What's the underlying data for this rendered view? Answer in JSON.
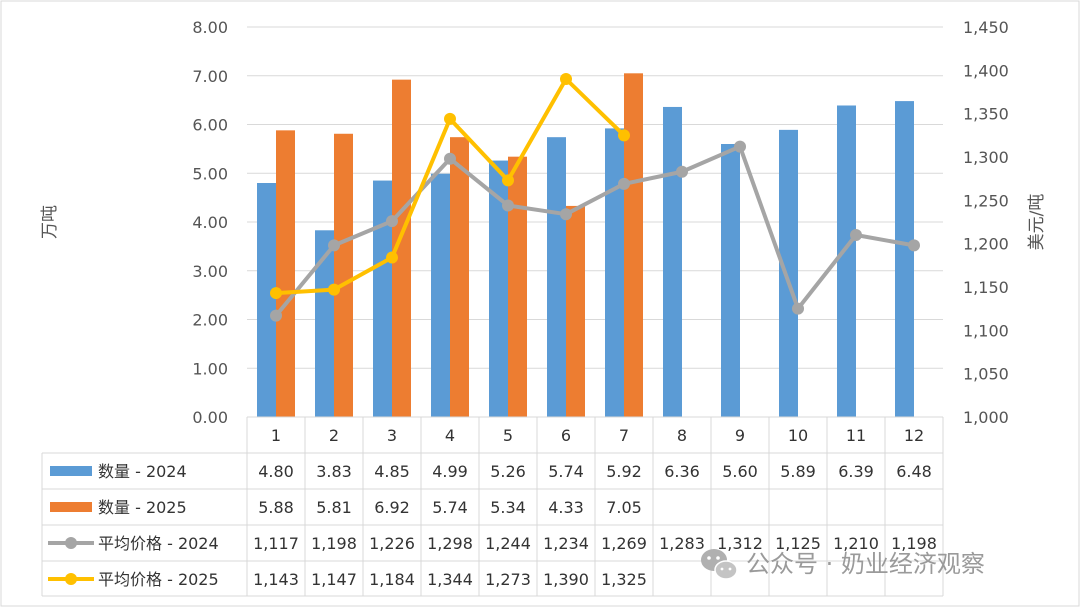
{
  "chart_data": {
    "type": "bar+line",
    "categories": [
      "1",
      "2",
      "3",
      "4",
      "5",
      "6",
      "7",
      "8",
      "9",
      "10",
      "11",
      "12"
    ],
    "y_left": {
      "label": "万吨",
      "ylim": [
        0,
        8
      ],
      "ticks": [
        "0.00",
        "1.00",
        "2.00",
        "3.00",
        "4.00",
        "5.00",
        "6.00",
        "7.00",
        "8.00"
      ]
    },
    "y_right": {
      "label": "美元/吨",
      "ylim": [
        1000,
        1450
      ],
      "ticks": [
        "1,000",
        "1,050",
        "1,100",
        "1,150",
        "1,200",
        "1,250",
        "1,300",
        "1,350",
        "1,400",
        "1,450"
      ]
    },
    "series": [
      {
        "name": "数量 - 2024",
        "type": "bar",
        "axis": "left",
        "color": "#5b9bd5",
        "values": [
          4.8,
          3.83,
          4.85,
          4.99,
          5.26,
          5.74,
          5.92,
          6.36,
          5.6,
          5.89,
          6.39,
          6.48
        ],
        "labels": [
          "4.80",
          "3.83",
          "4.85",
          "4.99",
          "5.26",
          "5.74",
          "5.92",
          "6.36",
          "5.60",
          "5.89",
          "6.39",
          "6.48"
        ]
      },
      {
        "name": "数量 - 2025",
        "type": "bar",
        "axis": "left",
        "color": "#ed7d31",
        "values": [
          5.88,
          5.81,
          6.92,
          5.74,
          5.34,
          4.33,
          7.05,
          null,
          null,
          null,
          null,
          null
        ],
        "labels": [
          "5.88",
          "5.81",
          "6.92",
          "5.74",
          "5.34",
          "4.33",
          "7.05",
          "",
          "",
          "",
          "",
          ""
        ]
      },
      {
        "name": "平均价格 - 2024",
        "type": "line",
        "axis": "right",
        "color": "#a5a5a5",
        "values": [
          1117,
          1198,
          1226,
          1298,
          1244,
          1234,
          1269,
          1283,
          1312,
          1125,
          1210,
          1198
        ],
        "labels": [
          "1,117",
          "1,198",
          "1,226",
          "1,298",
          "1,244",
          "1,234",
          "1,269",
          "1,283",
          "1,312",
          "1,125",
          "1,210",
          "1,198"
        ]
      },
      {
        "name": "平均价格 - 2025",
        "type": "line",
        "axis": "right",
        "color": "#ffc000",
        "values": [
          1143,
          1147,
          1184,
          1344,
          1273,
          1390,
          1325,
          null,
          null,
          null,
          null,
          null
        ],
        "labels": [
          "1,143",
          "1,147",
          "1,184",
          "1,344",
          "1,273",
          "1,390",
          "1,325",
          "",
          "",
          "",
          "",
          ""
        ]
      }
    ],
    "data_table": true,
    "grid": true
  },
  "watermark": "公众号 · 奶业经济观察"
}
